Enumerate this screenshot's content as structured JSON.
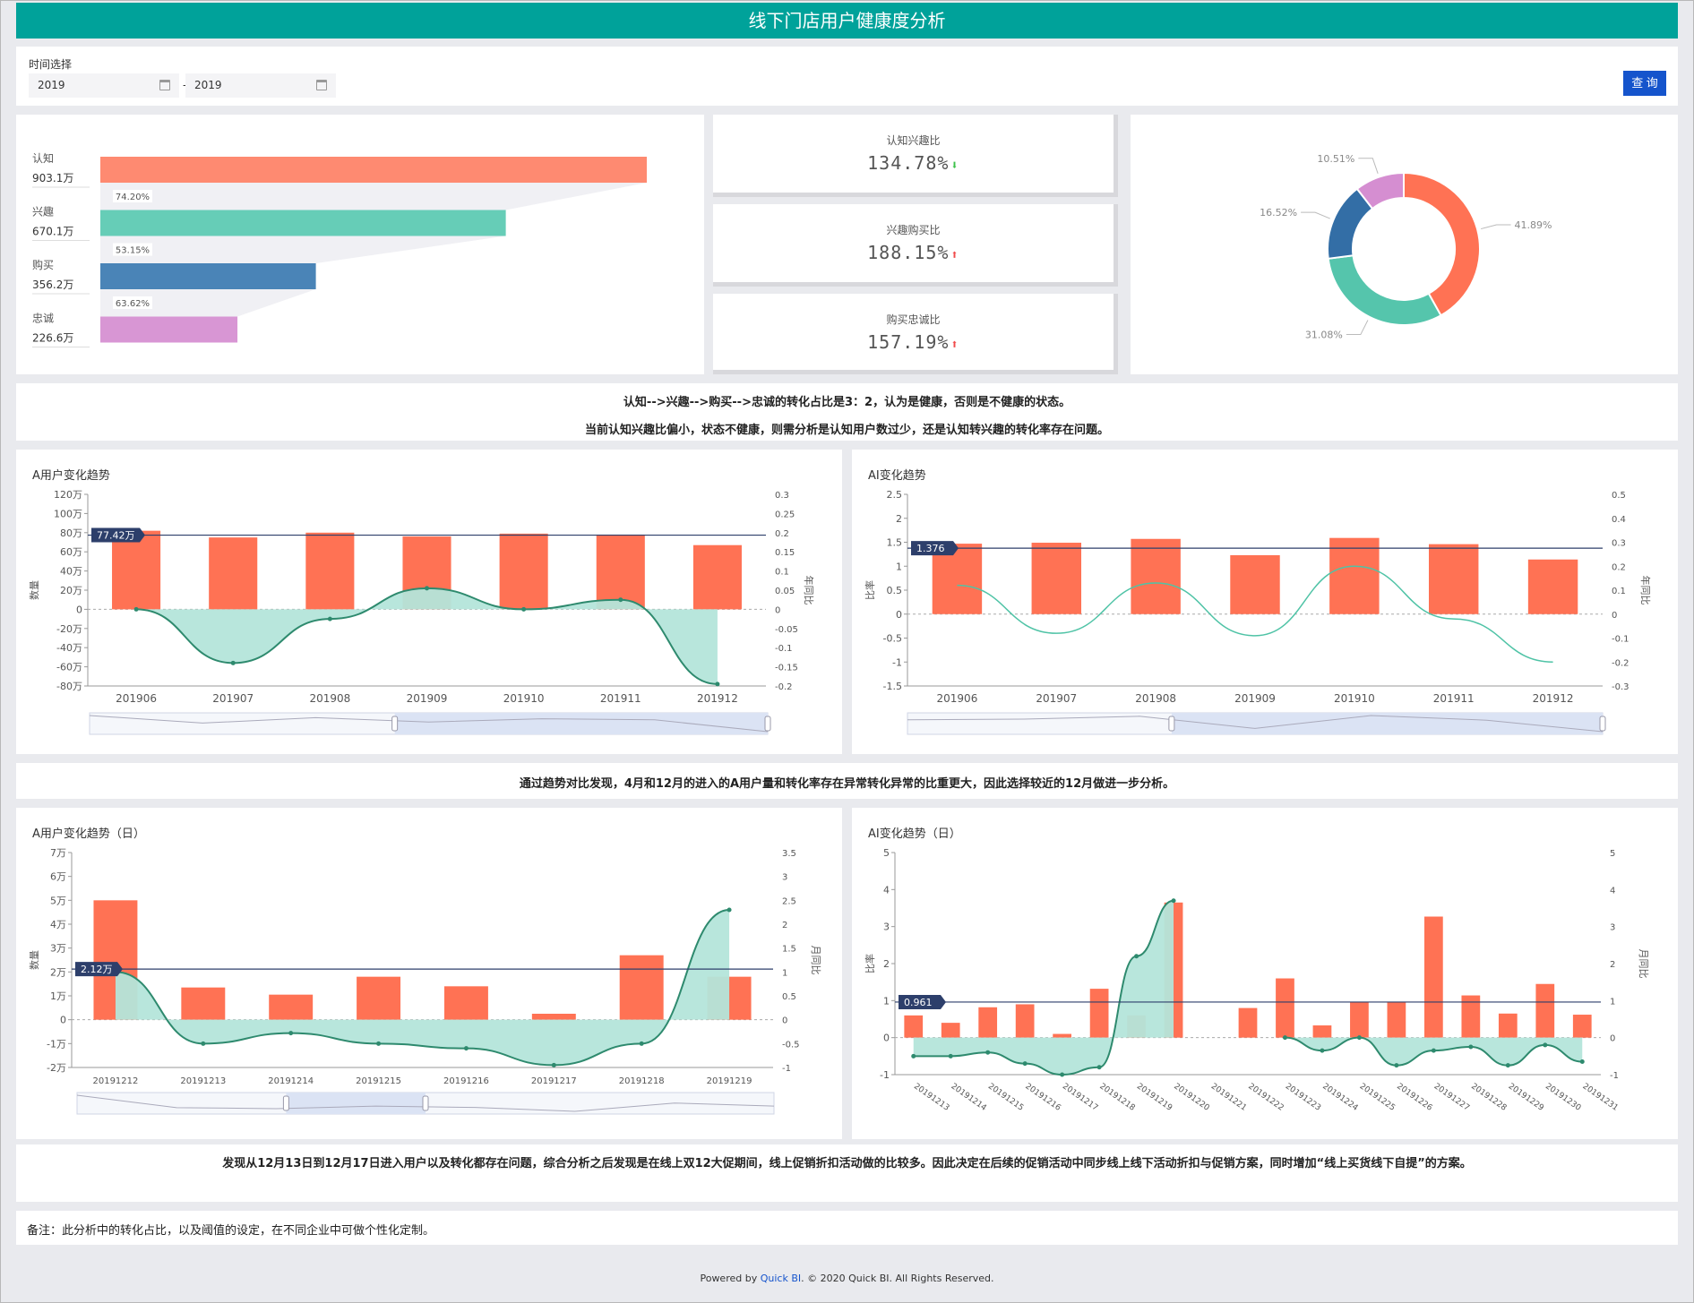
{
  "header": {
    "title": "线下门店用户健康度分析"
  },
  "filter": {
    "label": "时间选择",
    "start": "2019",
    "end": "2019",
    "separator": "-",
    "query_label": "查 询"
  },
  "funnel": {
    "stages": [
      {
        "name": "认知",
        "value": "903.1万",
        "num": 903.1,
        "color": "#fe8a71"
      },
      {
        "name": "兴趣",
        "value": "670.1万",
        "num": 670.1,
        "color": "#66cdb7"
      },
      {
        "name": "购买",
        "value": "356.2万",
        "num": 356.2,
        "color": "#4a84b7"
      },
      {
        "name": "忠诚",
        "value": "226.6万",
        "num": 226.6,
        "color": "#d896d4"
      }
    ],
    "rates": [
      "74.20%",
      "53.15%",
      "63.62%"
    ]
  },
  "kpis": [
    {
      "title": "认知兴趣比",
      "value": "134.78%",
      "trend": "down",
      "color": "#3dc24a"
    },
    {
      "title": "兴趣购买比",
      "value": "188.15%",
      "trend": "up",
      "color": "#f04b4b"
    },
    {
      "title": "购买忠诚比",
      "value": "157.19%",
      "trend": "up",
      "color": "#f04b4b"
    }
  ],
  "donut": {
    "slices": [
      {
        "label": "41.89%",
        "value": 41.89,
        "color": "#ff7254"
      },
      {
        "label": "31.08%",
        "value": 31.08,
        "color": "#55c5ac"
      },
      {
        "label": "16.52%",
        "value": 16.52,
        "color": "#336ea6"
      },
      {
        "label": "10.51%",
        "value": 10.51,
        "color": "#d58ed1"
      }
    ]
  },
  "notes": {
    "n1_line1": "认知-->兴趣-->购买-->忠诚的转化占比是3：2，认为是健康，否则是不健康的状态。",
    "n1_line2": "当前认知兴趣比偏小，状态不健康，则需分析是认知用户数过少，还是认知转兴趣的转化率存在问题。",
    "n2": "通过趋势对比发现，4月和12月的进入的A用户量和转化率存在异常转化异常的比重更大，因此选择较近的12月做进一步分析。",
    "n3": "发现从12月13日到12月17日进入用户以及转化都存在问题，综合分析之后发现是在线上双12大促期间，线上促销折扣活动做的比较多。因此决定在后续的促销活动中同步线上线下活动折扣与促销方案，同时增加“线上买货线下自提”的方案。",
    "remark": "备注：此分析中的转化占比，以及阈值的设定，在不同企业中可做个性化定制。"
  },
  "colors": {
    "bar": "#ff7254",
    "line": "#2e8a6e",
    "area": "#b4e5da",
    "ref": "#2d3f6b"
  },
  "chart_data": [
    {
      "type": "bar",
      "title": "A用户变化趋势",
      "ylabel": "数量",
      "y2label": "年同比",
      "categories": [
        "201906",
        "201907",
        "201908",
        "201909",
        "201910",
        "201911",
        "201912"
      ],
      "ylim": [
        -80,
        120
      ],
      "yticks": [
        "120万",
        "100万",
        "80万",
        "60万",
        "40万",
        "20万",
        "0",
        "-20万",
        "-40万",
        "-60万",
        "-80万"
      ],
      "y2lim": [
        -0.2,
        0.3
      ],
      "y2ticks": [
        "0.3",
        "0.25",
        "0.2",
        "0.15",
        "0.1",
        "0.05",
        "0",
        "-0.05",
        "-0.1",
        "-0.15",
        "-0.2"
      ],
      "series": [
        {
          "kind": "bar",
          "values": [
            82,
            75,
            80,
            76,
            79,
            78,
            67
          ]
        },
        {
          "kind": "area",
          "axis": "y2",
          "values": [
            0,
            -0.14,
            -0.025,
            0.055,
            0,
            0.025,
            -0.195
          ]
        }
      ],
      "ref_line": {
        "value": 77.42,
        "label": "77.42万"
      },
      "slider": true
    },
    {
      "type": "bar",
      "title": "AI变化趋势",
      "ylabel": "比率",
      "y2label": "年同比",
      "categories": [
        "201906",
        "201907",
        "201908",
        "201909",
        "201910",
        "201911",
        "201912"
      ],
      "ylim": [
        -1.5,
        2.5
      ],
      "yticks": [
        "2.5",
        "2",
        "1.5",
        "1",
        "0.5",
        "0",
        "-0.5",
        "-1",
        "-1.5"
      ],
      "y2lim": [
        -0.3,
        0.5
      ],
      "y2ticks": [
        "0.5",
        "0.4",
        "0.3",
        "0.2",
        "0.1",
        "0",
        "-0.1",
        "-0.2",
        "-0.3"
      ],
      "series": [
        {
          "kind": "bar",
          "values": [
            1.47,
            1.49,
            1.57,
            1.23,
            1.59,
            1.46,
            1.14
          ]
        },
        {
          "kind": "line",
          "axis": "y2",
          "values": [
            0.12,
            -0.08,
            0.13,
            -0.09,
            0.2,
            -0.02,
            -0.2
          ]
        }
      ],
      "ref_line": {
        "value": 1.376,
        "label": "1.376"
      },
      "slider": true
    },
    {
      "type": "bar",
      "title": "A用户变化趋势（日）",
      "ylabel": "数量",
      "y2label": "月同比",
      "categories": [
        "20191212",
        "20191213",
        "20191214",
        "20191215",
        "20191216",
        "20191217",
        "20191218",
        "20191219"
      ],
      "ylim": [
        -2,
        7
      ],
      "yticks": [
        "7万",
        "6万",
        "5万",
        "4万",
        "3万",
        "2万",
        "1万",
        "0",
        "-1万",
        "-2万"
      ],
      "y2lim": [
        -1,
        3.5
      ],
      "y2ticks": [
        "3.5",
        "3",
        "2.5",
        "2",
        "1.5",
        "1",
        "0.5",
        "0",
        "-0.5",
        "-1"
      ],
      "series": [
        {
          "kind": "bar",
          "values": [
            5.0,
            1.35,
            1.05,
            1.8,
            1.4,
            0.25,
            2.7,
            1.8
          ]
        },
        {
          "kind": "area",
          "axis": "y2",
          "values": [
            1.0,
            -0.5,
            -0.28,
            -0.5,
            -0.6,
            -0.95,
            -0.5,
            2.3
          ]
        }
      ],
      "ref_line": {
        "value": 2.12,
        "label": "2.12万"
      },
      "slider": true
    },
    {
      "type": "bar",
      "title": "AI变化趋势（日）",
      "ylabel": "比率",
      "y2label": "月同比",
      "categories": [
        "20191213",
        "20191214",
        "20191215",
        "20191216",
        "20191217",
        "20191218",
        "20191219",
        "20191220",
        "20191221",
        "20191222",
        "20191223",
        "20191224",
        "20191225",
        "20191226",
        "20191227",
        "20191228",
        "20191229",
        "20191230",
        "20191231"
      ],
      "ylim": [
        -1,
        5
      ],
      "yticks": [
        "5",
        "4",
        "3",
        "2",
        "1",
        "0",
        "-1"
      ],
      "y2lim": [
        -1,
        5
      ],
      "y2ticks": [
        "5",
        "4",
        "3",
        "2",
        "1",
        "0",
        "-1"
      ],
      "series": [
        {
          "kind": "bar",
          "values": [
            0.6,
            0.4,
            0.82,
            0.9,
            0.1,
            1.32,
            0.6,
            3.65,
            0.0,
            0.8,
            1.6,
            0.33,
            0.95,
            0.95,
            3.27,
            1.14,
            0.65,
            1.45,
            0.62
          ]
        },
        {
          "kind": "area",
          "axis": "y2",
          "values": [
            -0.5,
            -0.5,
            -0.4,
            -0.7,
            -1.0,
            -0.8,
            2.2,
            3.7,
            null,
            null,
            0.0,
            -0.35,
            0.0,
            -0.75,
            -0.35,
            -0.25,
            -0.75,
            -0.2,
            -0.65
          ]
        }
      ],
      "ref_line": {
        "value": 0.961,
        "label": "0.961"
      },
      "slider": false
    }
  ],
  "footer": {
    "prefix": "Powered by ",
    "link": "Quick BI",
    "suffix": ". © 2020 Quick BI. All Rights Reserved."
  }
}
